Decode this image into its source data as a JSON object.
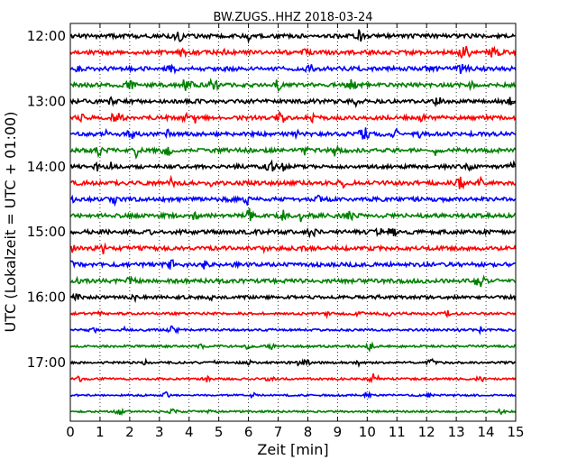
{
  "chart_data": {
    "type": "line",
    "title": "BW.ZUGS..HHZ 2018-03-24",
    "xlabel": "Zeit  [min]",
    "ylabel": "UTC (Lokalzeit = UTC + 01:00)",
    "xlim": [
      0,
      15
    ],
    "x_ticks": [
      "0",
      "1",
      "2",
      "3",
      "4",
      "5",
      "6",
      "7",
      "8",
      "9",
      "10",
      "11",
      "12",
      "13",
      "14",
      "15"
    ],
    "y_ticks": [
      {
        "label": "12:00",
        "trace_index": 0
      },
      {
        "label": "13:00",
        "trace_index": 4
      },
      {
        "label": "14:00",
        "trace_index": 8
      },
      {
        "label": "15:00",
        "trace_index": 12
      },
      {
        "label": "16:00",
        "trace_index": 16
      },
      {
        "label": "17:00",
        "trace_index": 20
      }
    ],
    "grid": "vertical dotted",
    "trace_interval_minutes": 15,
    "color_cycle": [
      "#000000",
      "#ff0000",
      "#0000ff",
      "#008000"
    ],
    "traces": [
      {
        "start": "12:00",
        "amplitude": 1.0
      },
      {
        "start": "12:15",
        "amplitude": 1.0
      },
      {
        "start": "12:30",
        "amplitude": 1.0
      },
      {
        "start": "12:45",
        "amplitude": 1.0
      },
      {
        "start": "13:00",
        "amplitude": 1.0
      },
      {
        "start": "13:15",
        "amplitude": 1.0
      },
      {
        "start": "13:30",
        "amplitude": 1.0
      },
      {
        "start": "13:45",
        "amplitude": 1.0
      },
      {
        "start": "14:00",
        "amplitude": 0.9
      },
      {
        "start": "14:15",
        "amplitude": 1.0
      },
      {
        "start": "14:30",
        "amplitude": 1.0
      },
      {
        "start": "14:45",
        "amplitude": 1.0
      },
      {
        "start": "15:00",
        "amplitude": 1.0
      },
      {
        "start": "15:15",
        "amplitude": 1.0
      },
      {
        "start": "15:30",
        "amplitude": 1.0
      },
      {
        "start": "15:45",
        "amplitude": 1.0
      },
      {
        "start": "16:00",
        "amplitude": 0.8
      },
      {
        "start": "16:15",
        "amplitude": 0.6
      },
      {
        "start": "16:30",
        "amplitude": 0.55
      },
      {
        "start": "16:45",
        "amplitude": 0.55
      },
      {
        "start": "17:00",
        "amplitude": 0.55
      },
      {
        "start": "17:15",
        "amplitude": 0.5
      },
      {
        "start": "17:30",
        "amplitude": 0.45
      },
      {
        "start": "17:45",
        "amplitude": 0.45
      }
    ]
  }
}
